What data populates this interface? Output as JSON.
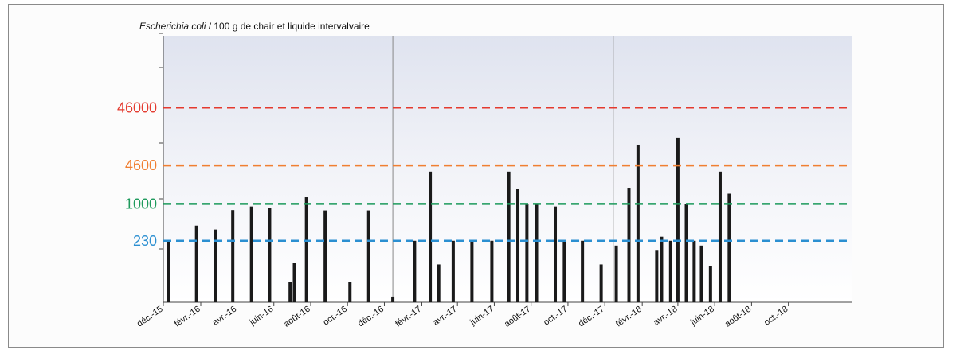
{
  "chart_data": {
    "type": "bar",
    "title_italic": "Escherichia coli",
    "title_rest": " / 100 g de chair et liquide intervalvaire",
    "x_ticks": [
      "déc.-15",
      "févr.-16",
      "avr.-16",
      "juin-16",
      "août-16",
      "oct.-16",
      "déc.-16",
      "févr.-17",
      "avr.-17",
      "juin-17",
      "août-17",
      "oct.-17",
      "déc.-17",
      "févr.-18",
      "avr.-18",
      "juin-18",
      "août-18",
      "oct.-18"
    ],
    "xlim": [
      "2015-12-01",
      "2019-01-15"
    ],
    "y_scale": "log",
    "ylim": [
      20,
      800000
    ],
    "thresholds": [
      {
        "label": "46000",
        "value": 46000,
        "color": "#e43a2f"
      },
      {
        "label": "4600",
        "value": 4600,
        "color": "#f07f32"
      },
      {
        "label": "1000",
        "value": 1000,
        "color": "#1e9a5c"
      },
      {
        "label": "230",
        "value": 230,
        "color": "#2b8fd1"
      }
    ],
    "year_separators": [
      "2016-12-15",
      "2017-12-15"
    ],
    "x": [
      "2015-12-10",
      "2016-01-25",
      "2016-02-25",
      "2016-03-25",
      "2016-04-25",
      "2016-05-25",
      "2016-06-28",
      "2016-07-05",
      "2016-07-25",
      "2016-08-25",
      "2016-10-05",
      "2016-11-05",
      "2016-12-15",
      "2017-01-20",
      "2017-02-15",
      "2017-03-01",
      "2017-03-25",
      "2017-04-25",
      "2017-05-28",
      "2017-06-25",
      "2017-07-10",
      "2017-07-25",
      "2017-08-10",
      "2017-09-10",
      "2017-09-25",
      "2017-10-25",
      "2017-11-25",
      "2017-12-20",
      "2018-01-10",
      "2018-01-25",
      "2018-02-25",
      "2018-03-05",
      "2018-03-20",
      "2018-04-01",
      "2018-04-15",
      "2018-04-28",
      "2018-05-10",
      "2018-05-25",
      "2018-06-10",
      "2018-06-25",
      "2018-07-10",
      "2018-08-10",
      "2018-09-10",
      "2018-09-25"
    ],
    "values": [
      230,
      420,
      360,
      780,
      900,
      850,
      45,
      95,
      1300,
      770,
      45,
      770,
      25,
      230,
      3600,
      90,
      230,
      230,
      230,
      3600,
      1800,
      1000,
      1000,
      900,
      230,
      230,
      90,
      190,
      1900,
      10500,
      160,
      270,
      230,
      14000,
      1000,
      230,
      190,
      85,
      3600,
      1500,
      0,
      0,
      0,
      0
    ]
  }
}
